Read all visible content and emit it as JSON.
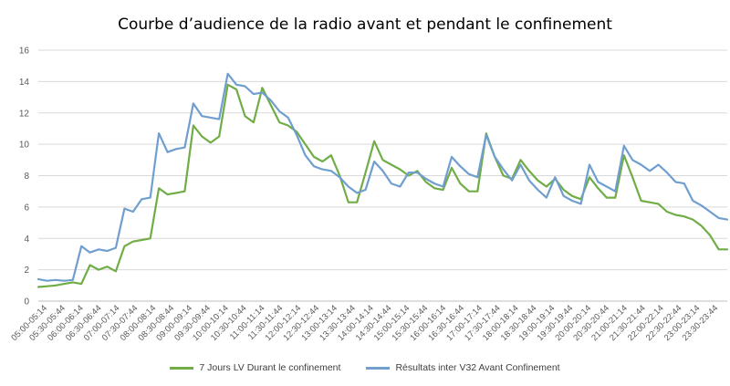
{
  "chart_data": {
    "type": "line",
    "title": "Courbe d’audience de la radio avant et pendant le confinement",
    "xlabel": "",
    "ylabel": "",
    "ylim": [
      0,
      16
    ],
    "yticks": [
      0,
      2,
      4,
      6,
      8,
      10,
      12,
      14,
      16
    ],
    "grid": true,
    "legend_position": "bottom",
    "x_tick_labels": [
      "05:00-05:14",
      "05:30-05:44",
      "06:00-06:14",
      "06:30-06:44",
      "07:00-07:14",
      "07:30-07:44",
      "08:00-08:14",
      "08:30-08:44",
      "09:00-09:14",
      "09:30-09:44",
      "10:00-10:14",
      "10:30-10:44",
      "11:00-11:14",
      "11:30-11:44",
      "12:00-12:14",
      "12:30-12:44",
      "13:00-13:14",
      "13:30-13:44",
      "14:00-14:14",
      "14:30-14:44",
      "15:00-15:14",
      "15:30-15:44",
      "16:00-16:14",
      "16:30-16:44",
      "17:00-17:14",
      "17:30-17:44",
      "18:00-18:14",
      "18:30-18:44",
      "19:00-19:14",
      "19:30-19:44",
      "20:00-20:14",
      "20:30-20:44",
      "21:00-21:14",
      "21:30-21:44",
      "22:00-22:14",
      "22:30-22:44",
      "23:00-23:14",
      "23:30-23:44"
    ],
    "series": [
      {
        "name": "7 Jours LV Durant le confinement",
        "color": "#70ad47",
        "values": [
          0.9,
          0.95,
          1.0,
          1.1,
          1.2,
          1.1,
          2.3,
          2.0,
          2.2,
          1.9,
          3.5,
          3.8,
          3.9,
          4.0,
          7.2,
          6.8,
          6.9,
          7.0,
          11.2,
          10.5,
          10.1,
          10.5,
          13.8,
          13.5,
          11.8,
          11.4,
          13.6,
          12.5,
          11.4,
          11.2,
          10.8,
          10.0,
          9.2,
          8.9,
          9.3,
          8.0,
          6.3,
          6.3,
          8.2,
          10.2,
          9.0,
          8.7,
          8.4,
          8.0,
          8.3,
          7.6,
          7.2,
          7.1,
          8.5,
          7.5,
          7.0,
          7.0,
          10.7,
          9.2,
          8.0,
          7.8,
          9.0,
          8.3,
          7.7,
          7.3,
          7.8,
          7.1,
          6.7,
          6.5,
          7.9,
          7.2,
          6.6,
          6.6,
          9.3,
          7.9,
          6.4,
          6.3,
          6.2,
          5.7,
          5.5,
          5.4,
          5.2,
          4.8,
          4.2,
          3.3,
          3.3
        ],
        "values_note": ""
      },
      {
        "name": "Résultats inter V32 Avant Confinement",
        "color": "#6f9ecf",
        "values": [
          1.4,
          1.3,
          1.35,
          1.3,
          1.35,
          3.5,
          3.1,
          3.3,
          3.2,
          3.4,
          5.9,
          5.7,
          6.5,
          6.6,
          10.7,
          9.5,
          9.7,
          9.8,
          12.6,
          11.8,
          11.7,
          11.6,
          14.5,
          13.8,
          13.7,
          13.2,
          13.3,
          12.8,
          12.1,
          11.7,
          10.6,
          9.3,
          8.6,
          8.4,
          8.3,
          7.9,
          7.3,
          6.9,
          7.1,
          8.9,
          8.3,
          7.5,
          7.3,
          8.2,
          8.2,
          7.8,
          7.5,
          7.3,
          9.2,
          8.6,
          8.1,
          7.9,
          10.6,
          9.2,
          8.4,
          7.7,
          8.7,
          7.7,
          7.1,
          6.6,
          7.9,
          6.7,
          6.4,
          6.2,
          8.7,
          7.6,
          7.3,
          7.0,
          9.9,
          9.0,
          8.7,
          8.3,
          8.7,
          8.2,
          7.6,
          7.5,
          6.4,
          6.1,
          5.7,
          5.3,
          5.2
        ],
        "values_note": ""
      }
    ]
  }
}
